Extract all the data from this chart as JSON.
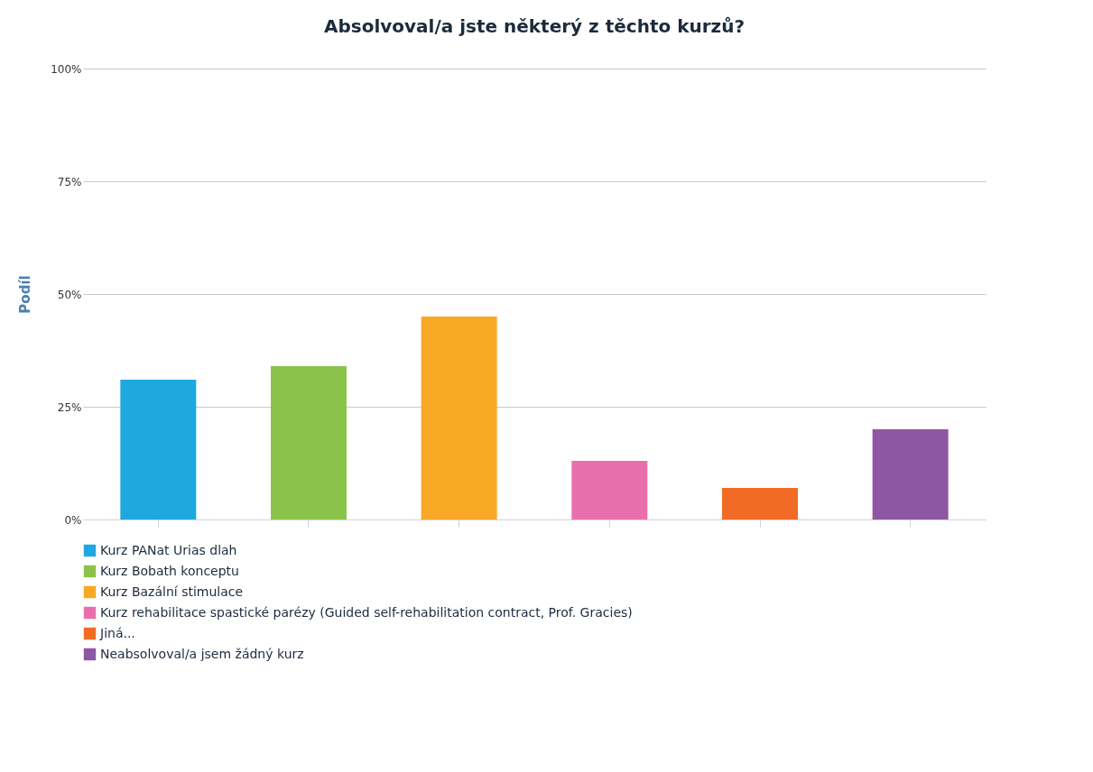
{
  "chart_data": {
    "type": "bar",
    "title": "Absolvoval/a jste některý z těchto kurzů?",
    "ylabel": "Podíl",
    "categories": [
      null,
      null,
      null,
      null,
      null,
      null
    ],
    "series": [
      {
        "name": "Kurz PANat Urias dlah",
        "color": "#1fa8e0",
        "values": [
          31,
          null,
          null,
          null,
          null,
          null
        ]
      },
      {
        "name": "Kurz Bobath konceptu",
        "color": "#8bc34a",
        "values": [
          null,
          34,
          null,
          null,
          null,
          null
        ]
      },
      {
        "name": "Kurz Bazální stimulace",
        "color": "#f9a825",
        "values": [
          null,
          null,
          45,
          null,
          null,
          null
        ]
      },
      {
        "name": "Kurz rehabilitace spastické parézy (Guided self-rehabilitation contract, Prof. Gracies)",
        "color": "#e96fac",
        "values": [
          null,
          null,
          null,
          13,
          null,
          null
        ]
      },
      {
        "name": "Jiná...",
        "color": "#f26b25",
        "values": [
          null,
          null,
          null,
          null,
          7,
          null
        ]
      },
      {
        "name": "Neabsolvoval/a jsem žádný kurz",
        "color": "#8e57a3",
        "values": [
          null,
          null,
          null,
          null,
          null,
          20
        ]
      }
    ],
    "ylim": [
      0,
      100
    ],
    "yticks": [
      {
        "value": 0,
        "label": "0%"
      },
      {
        "value": 25,
        "label": "25%"
      },
      {
        "value": 50,
        "label": "50%"
      },
      {
        "value": 75,
        "label": "75%"
      },
      {
        "value": 100,
        "label": "100%"
      }
    ],
    "grid": "y",
    "legend": "bottom",
    "tick_labels": "y"
  }
}
